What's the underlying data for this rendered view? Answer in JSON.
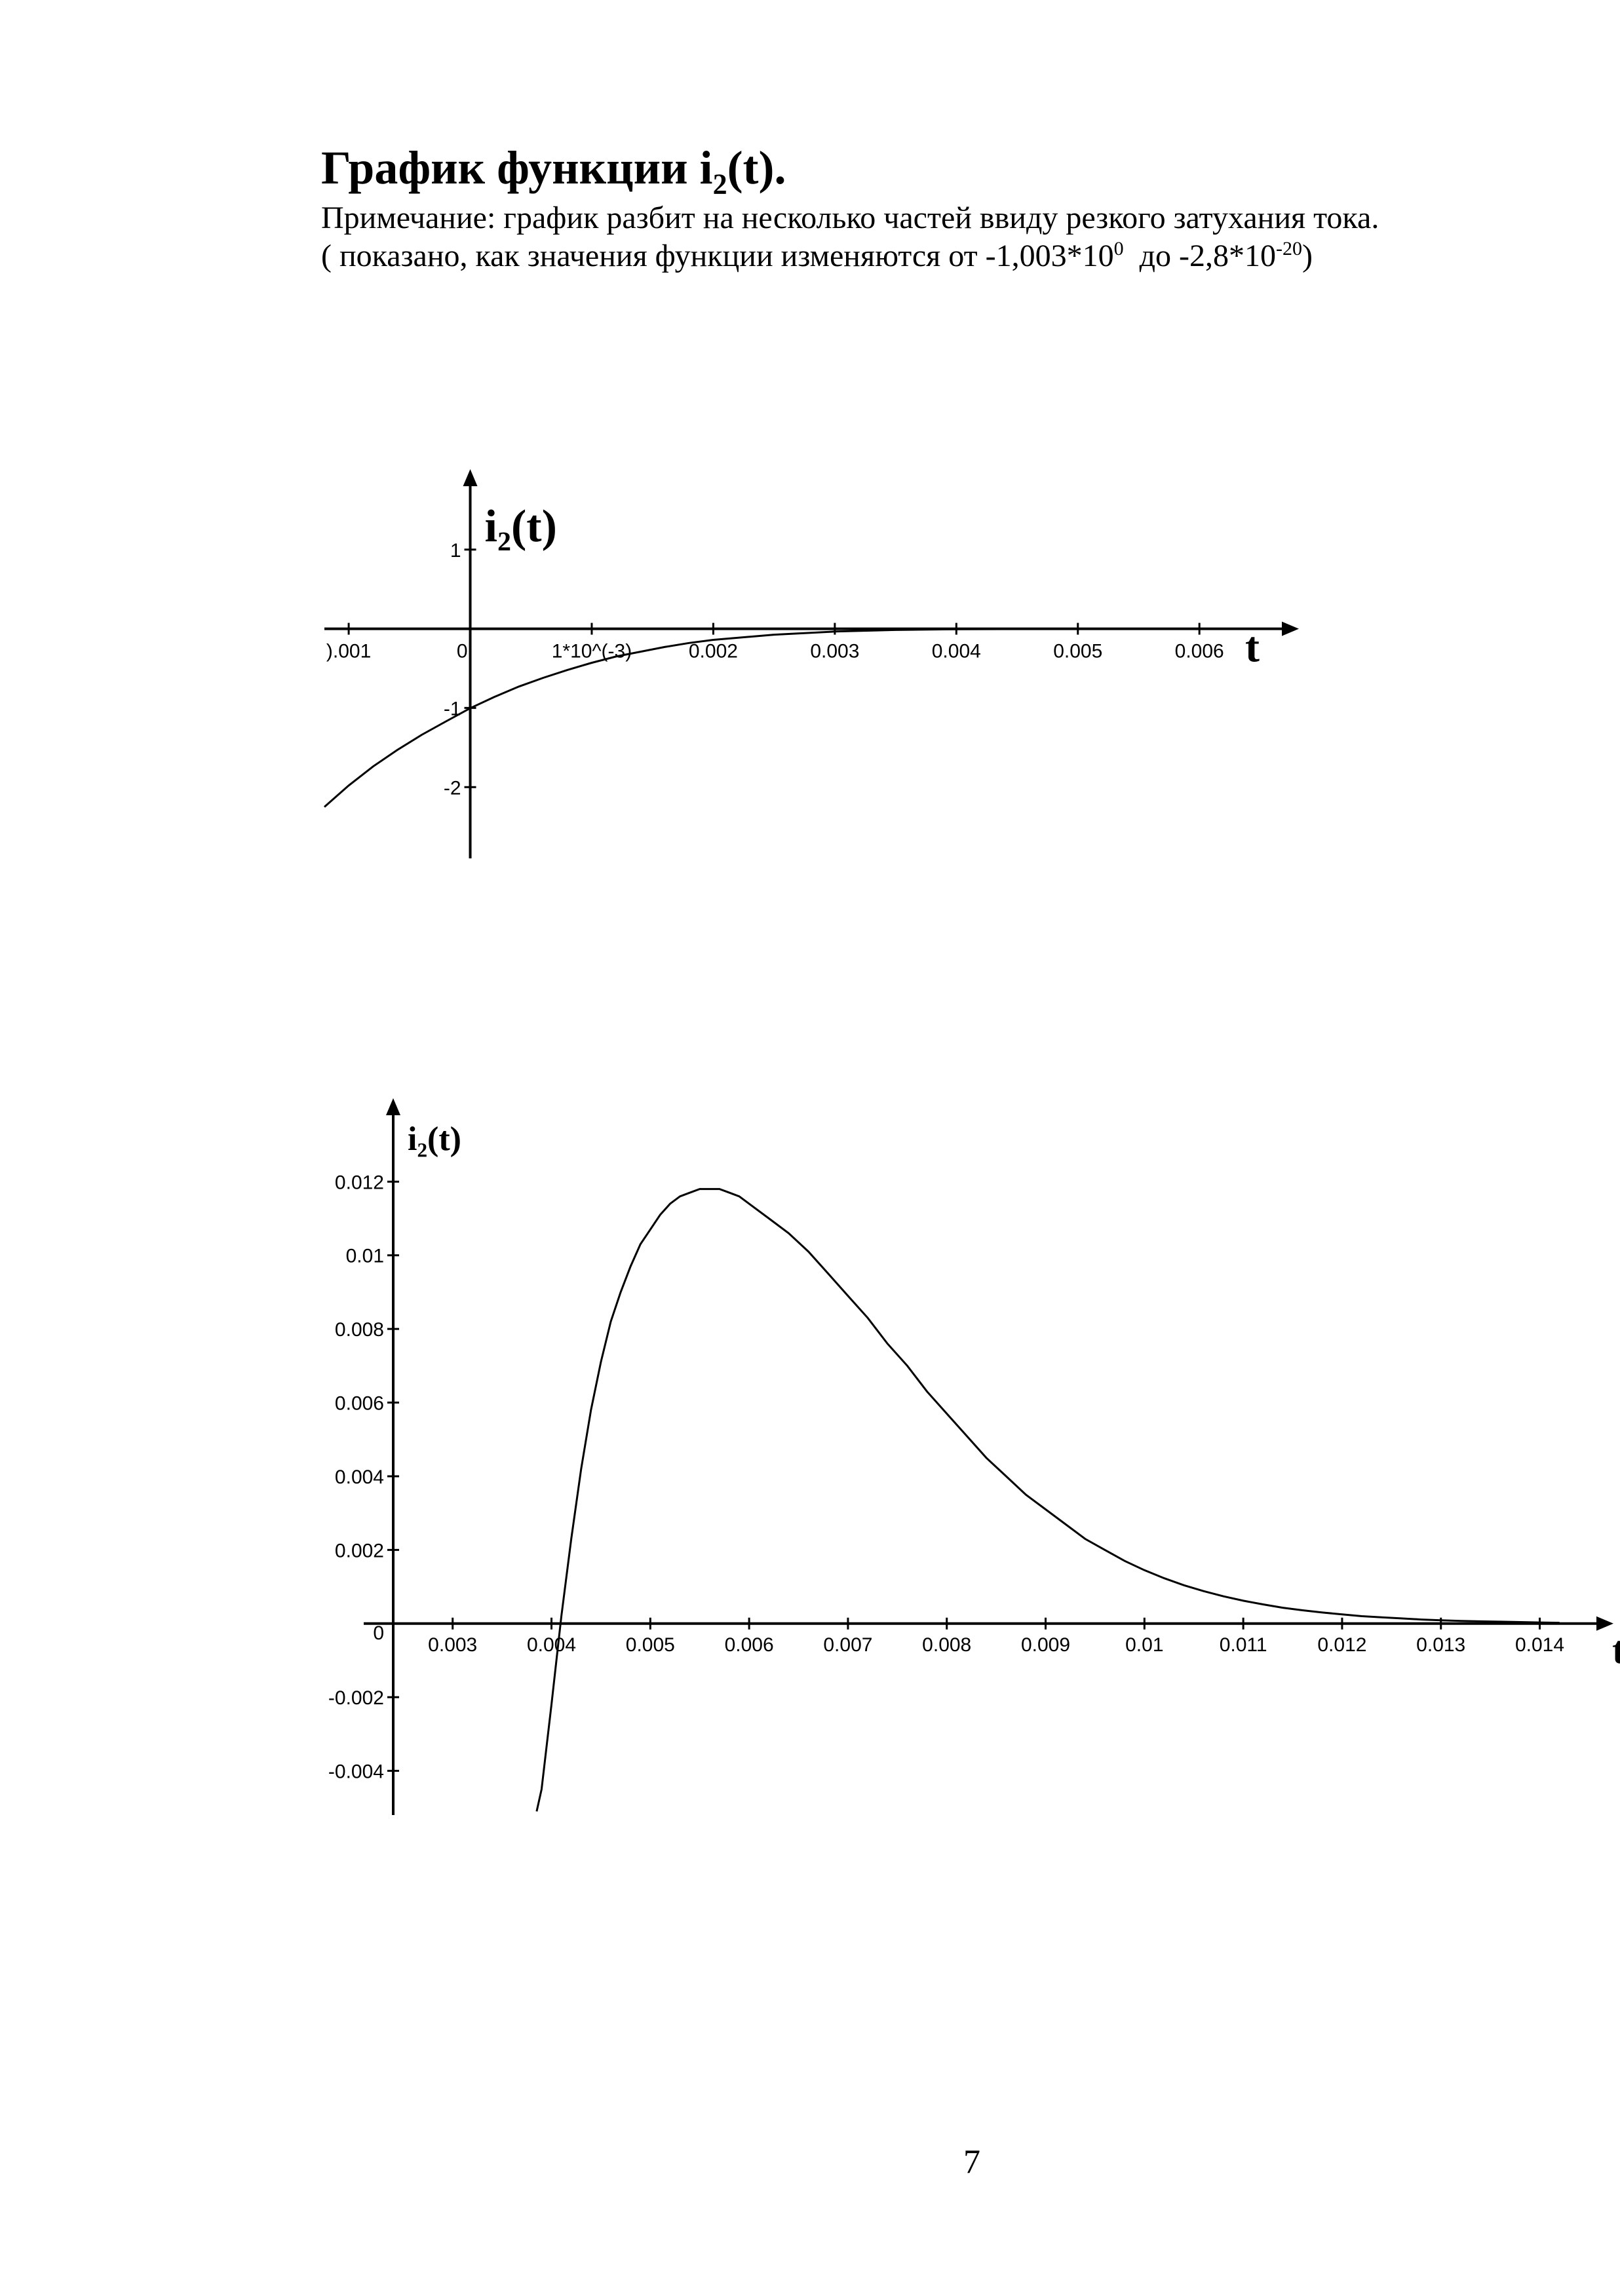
{
  "document": {
    "title_main": "График функции i",
    "title_sub": "2",
    "title_end": "(t).",
    "note_line1": "Примечание: график разбит на несколько частей ввиду резкого затухания тока.",
    "note_line2_a": "( показано, как значения функции изменяются от -1,003*10",
    "note_line2_sup1": "0",
    "note_line2_b": "  до -2,8*10",
    "note_line2_sup2": "-20",
    "note_line2_c": ")",
    "page_number": "7"
  },
  "chart_data": [
    {
      "type": "line",
      "ylabel": "i₂(t)",
      "xlabel": "t",
      "xlim": [
        -0.0012,
        0.0067
      ],
      "ylim": [
        -2.9,
        1.9
      ],
      "x_ticks": [
        {
          "v": -0.001,
          "label": ").001"
        },
        {
          "v": 0,
          "label": "0"
        },
        {
          "v": 0.001,
          "label": "1*10^(-3)"
        },
        {
          "v": 0.002,
          "label": "0.002"
        },
        {
          "v": 0.003,
          "label": "0.003"
        },
        {
          "v": 0.004,
          "label": "0.004"
        },
        {
          "v": 0.005,
          "label": "0.005"
        },
        {
          "v": 0.006,
          "label": "0.006"
        }
      ],
      "y_ticks": [
        {
          "v": 1,
          "label": "1"
        },
        {
          "v": -1,
          "label": "-1"
        },
        {
          "v": -2,
          "label": "-2"
        }
      ],
      "series": [
        {
          "x": [
            -0.0012,
            -0.001,
            -0.0008,
            -0.0006,
            -0.0004,
            -0.0002,
            0,
            0.0002,
            0.0004,
            0.0006,
            0.0008,
            0.001,
            0.0012,
            0.0014,
            0.0016,
            0.0018,
            0.002,
            0.0025,
            0.003,
            0.0035,
            0.004,
            0.0045,
            0.005,
            0.0055,
            0.006,
            0.0065
          ],
          "y": [
            -2.25,
            -1.98,
            -1.74,
            -1.53,
            -1.34,
            -1.17,
            -1.003,
            -0.86,
            -0.73,
            -0.62,
            -0.52,
            -0.43,
            -0.35,
            -0.29,
            -0.23,
            -0.18,
            -0.14,
            -0.075,
            -0.035,
            -0.015,
            -0.006,
            -0.002,
            -0.0008,
            -0.0003,
            -0.0001,
            -4e-05
          ]
        }
      ]
    },
    {
      "type": "line",
      "ylabel": "i₂(t)",
      "xlabel": "t",
      "xlim": [
        0.0021,
        0.0146
      ],
      "ylim": [
        -0.0052,
        0.0127
      ],
      "x_ticks": [
        {
          "v": 0.003,
          "label": "0.003"
        },
        {
          "v": 0.004,
          "label": "0.004"
        },
        {
          "v": 0.005,
          "label": "0.005"
        },
        {
          "v": 0.006,
          "label": "0.006"
        },
        {
          "v": 0.007,
          "label": "0.007"
        },
        {
          "v": 0.008,
          "label": "0.008"
        },
        {
          "v": 0.009,
          "label": "0.009"
        },
        {
          "v": 0.01,
          "label": "0.01"
        },
        {
          "v": 0.011,
          "label": "0.011"
        },
        {
          "v": 0.012,
          "label": "0.012"
        },
        {
          "v": 0.013,
          "label": "0.013"
        },
        {
          "v": 0.014,
          "label": "0.014"
        }
      ],
      "y_ticks": [
        {
          "v": 0.012,
          "label": "0.012"
        },
        {
          "v": 0.01,
          "label": "0.01"
        },
        {
          "v": 0.008,
          "label": "0.008"
        },
        {
          "v": 0.006,
          "label": "0.006"
        },
        {
          "v": 0.004,
          "label": "0.004"
        },
        {
          "v": 0.002,
          "label": "0.002"
        },
        {
          "v": -0.002,
          "label": "-0.002"
        },
        {
          "v": -0.004,
          "label": "-0.004"
        }
      ],
      "origin_label": "0",
      "series": [
        {
          "x": [
            0.00385,
            0.0039,
            0.004,
            0.0041,
            0.0042,
            0.0043,
            0.0044,
            0.0045,
            0.0046,
            0.0047,
            0.0048,
            0.0049,
            0.005,
            0.0051,
            0.0052,
            0.0053,
            0.0054,
            0.0055,
            0.0056,
            0.0057,
            0.0058,
            0.0059,
            0.006,
            0.0062,
            0.0064,
            0.0066,
            0.0068,
            0.007,
            0.0072,
            0.0074,
            0.0076,
            0.0078,
            0.008,
            0.0082,
            0.0084,
            0.0086,
            0.0088,
            0.009,
            0.0092,
            0.0094,
            0.0096,
            0.0098,
            0.01,
            0.0102,
            0.0104,
            0.0106,
            0.0108,
            0.011,
            0.0112,
            0.0114,
            0.0116,
            0.0118,
            0.012,
            0.0122,
            0.0124,
            0.0126,
            0.0128,
            0.013,
            0.0132,
            0.0134,
            0.0136,
            0.0138,
            0.014,
            0.0142
          ],
          "y": [
            -0.0051,
            -0.0045,
            -0.0022,
            0.0002,
            0.0023,
            0.0042,
            0.0058,
            0.0071,
            0.0082,
            0.009,
            0.0097,
            0.0103,
            0.0107,
            0.0111,
            0.0114,
            0.0116,
            0.0117,
            0.0118,
            0.0118,
            0.0118,
            0.0117,
            0.0116,
            0.0114,
            0.011,
            0.0106,
            0.0101,
            0.0095,
            0.0089,
            0.0083,
            0.0076,
            0.007,
            0.0063,
            0.0057,
            0.0051,
            0.0045,
            0.004,
            0.0035,
            0.0031,
            0.0027,
            0.0023,
            0.002,
            0.0017,
            0.00145,
            0.00123,
            0.00104,
            0.00088,
            0.00074,
            0.00062,
            0.00052,
            0.00043,
            0.00036,
            0.0003,
            0.00025,
            0.0002,
            0.00017,
            0.00014,
            0.00011,
            9e-05,
            7e-05,
            6e-05,
            5e-05,
            4e-05,
            3e-05,
            2e-05
          ]
        }
      ]
    }
  ]
}
